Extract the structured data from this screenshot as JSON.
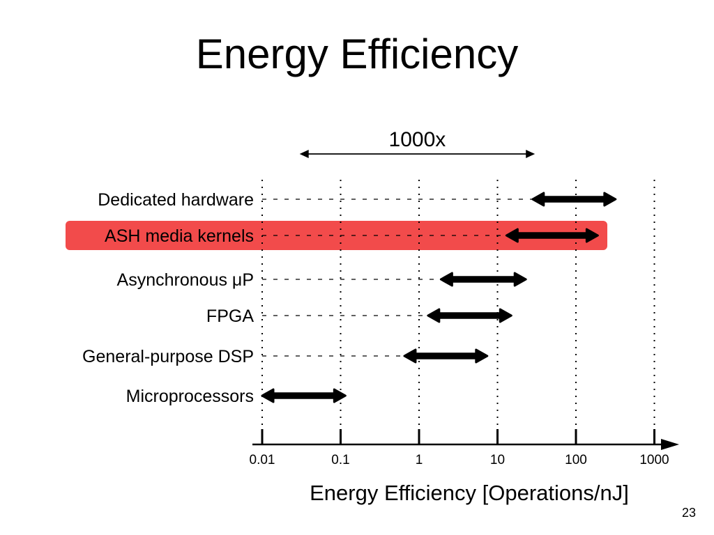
{
  "slide": {
    "title": "Energy Efficiency",
    "page_number": "23"
  },
  "chart_data": {
    "type": "range-bar",
    "xlabel": "Energy Efficiency [Operations/nJ]",
    "xscale": "log",
    "xlim": [
      0.01,
      1000
    ],
    "xticks": [
      {
        "value": 0.01,
        "label": "0.01"
      },
      {
        "value": 0.1,
        "label": "0.1"
      },
      {
        "value": 1,
        "label": "1"
      },
      {
        "value": 10,
        "label": "10"
      },
      {
        "value": 100,
        "label": "100"
      },
      {
        "value": 1000,
        "label": "1000"
      }
    ],
    "grid": "vertical dotted lines at each x tick",
    "categories": [
      {
        "label": "Dedicated hardware",
        "range": [
          28,
          320
        ],
        "highlight": false
      },
      {
        "label": "ASH media kernels",
        "range": [
          13,
          190
        ],
        "highlight": true,
        "highlight_color": "#f24b4b"
      },
      {
        "label": "Asynchronous μP",
        "range": [
          1.9,
          23
        ],
        "highlight": false
      },
      {
        "label": "FPGA",
        "range": [
          1.3,
          15
        ],
        "highlight": false
      },
      {
        "label": "General-purpose DSP",
        "range": [
          0.65,
          7.4
        ],
        "highlight": false
      },
      {
        "label": "Microprocessors",
        "range": [
          0.01,
          0.115
        ],
        "highlight": false
      }
    ],
    "annotations": [
      {
        "label": "1000x",
        "span": [
          0.03,
          30
        ]
      }
    ]
  }
}
